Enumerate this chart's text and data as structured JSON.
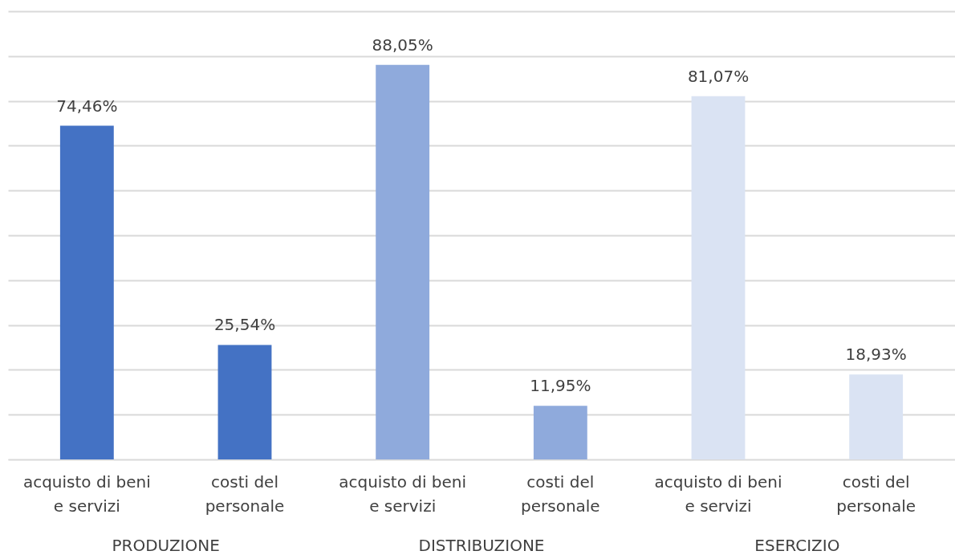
{
  "chart_data": {
    "type": "bar",
    "categories": [
      "acquisto di beni e servizi",
      "costi del personale",
      "acquisto di beni e servizi",
      "costi del personale",
      "acquisto di beni e servizi",
      "costi del personale"
    ],
    "values": [
      74.46,
      25.54,
      88.05,
      11.95,
      81.07,
      18.93
    ],
    "value_labels": [
      "74,46%",
      "25,54%",
      "88,05%",
      "11,95%",
      "81,07%",
      "18,93%"
    ],
    "colors": [
      "#4472c4",
      "#4472c4",
      "#8faadc",
      "#8faadc",
      "#dae3f3",
      "#dae3f3"
    ],
    "ylim": [
      0,
      100
    ],
    "yticks": [
      {
        "value": 0,
        "label": null
      },
      {
        "value": 10,
        "label": null
      },
      {
        "value": 20,
        "label": null
      },
      {
        "value": 30,
        "label": null
      },
      {
        "value": 40,
        "label": null
      },
      {
        "value": 50,
        "label": null
      },
      {
        "value": 60,
        "label": null
      },
      {
        "value": 70,
        "label": null
      },
      {
        "value": 80,
        "label": null
      },
      {
        "value": 90,
        "label": null
      },
      {
        "value": 100,
        "label": null
      }
    ],
    "grid": "y",
    "tick_labels": "x",
    "annotations": [
      "PRODUZIONE",
      "DISTRIBUZIONE",
      "ESERCIZIO"
    ]
  }
}
